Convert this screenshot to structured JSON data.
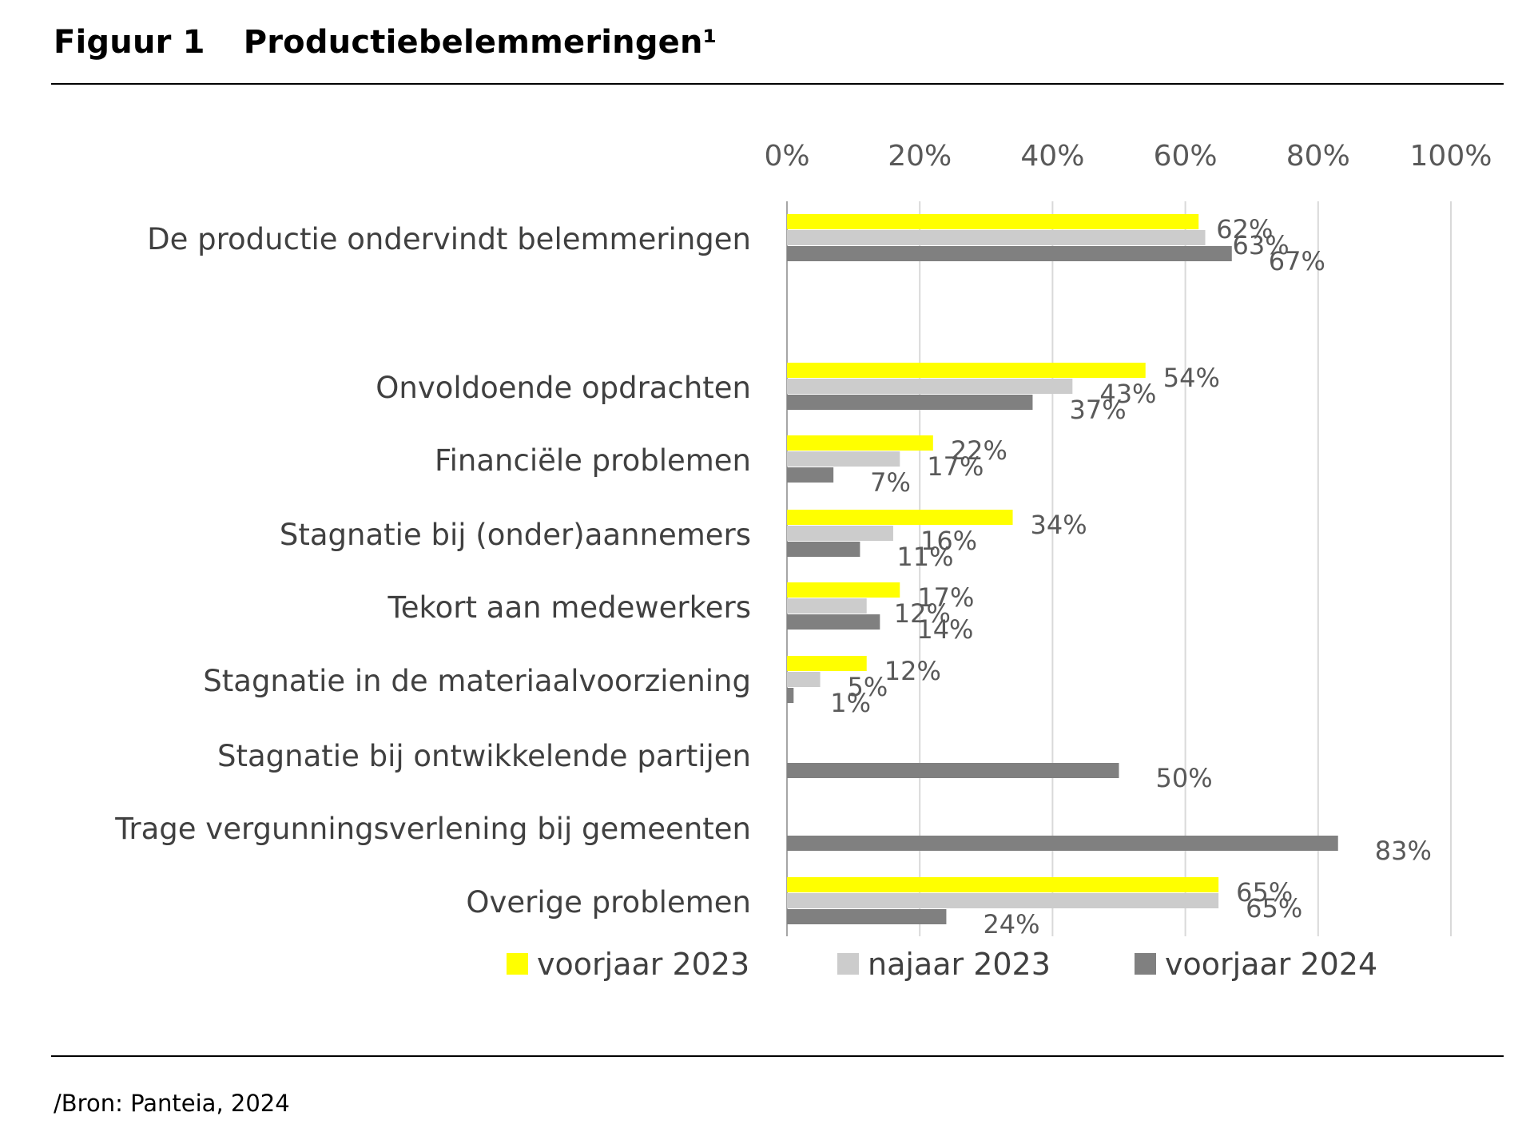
{
  "figure": {
    "label": "Figuur 1",
    "title": "Productiebelemmeringen¹"
  },
  "source": "/Bron: Panteia, 2024",
  "chart_data": {
    "type": "bar",
    "orientation": "horizontal",
    "xlim": [
      0,
      100
    ],
    "x_ticks": [
      "0%",
      "20%",
      "40%",
      "60%",
      "80%",
      "100%"
    ],
    "grid": true,
    "legend": "bottom",
    "categories": [
      "De productie ondervindt belemmeringen",
      "Onvoldoende opdrachten",
      "Financiële problemen",
      "Stagnatie bij (onder)aannemers",
      "Tekort aan medewerkers",
      "Stagnatie in de materiaalvoorziening",
      "Stagnatie bij ontwikkelende partijen",
      "Trage vergunningsverlening bij gemeenten",
      "Overige problemen"
    ],
    "series": [
      {
        "name": "voorjaar 2023",
        "color": "#ffff00",
        "values": [
          62,
          54,
          22,
          34,
          17,
          12,
          null,
          null,
          65
        ]
      },
      {
        "name": "najaar 2023",
        "color": "#cccccc",
        "values": [
          63,
          43,
          17,
          16,
          12,
          5,
          null,
          null,
          65
        ]
      },
      {
        "name": "voorjaar 2024",
        "color": "#808080",
        "values": [
          67,
          37,
          7,
          11,
          14,
          1,
          50,
          83,
          24
        ]
      }
    ]
  }
}
